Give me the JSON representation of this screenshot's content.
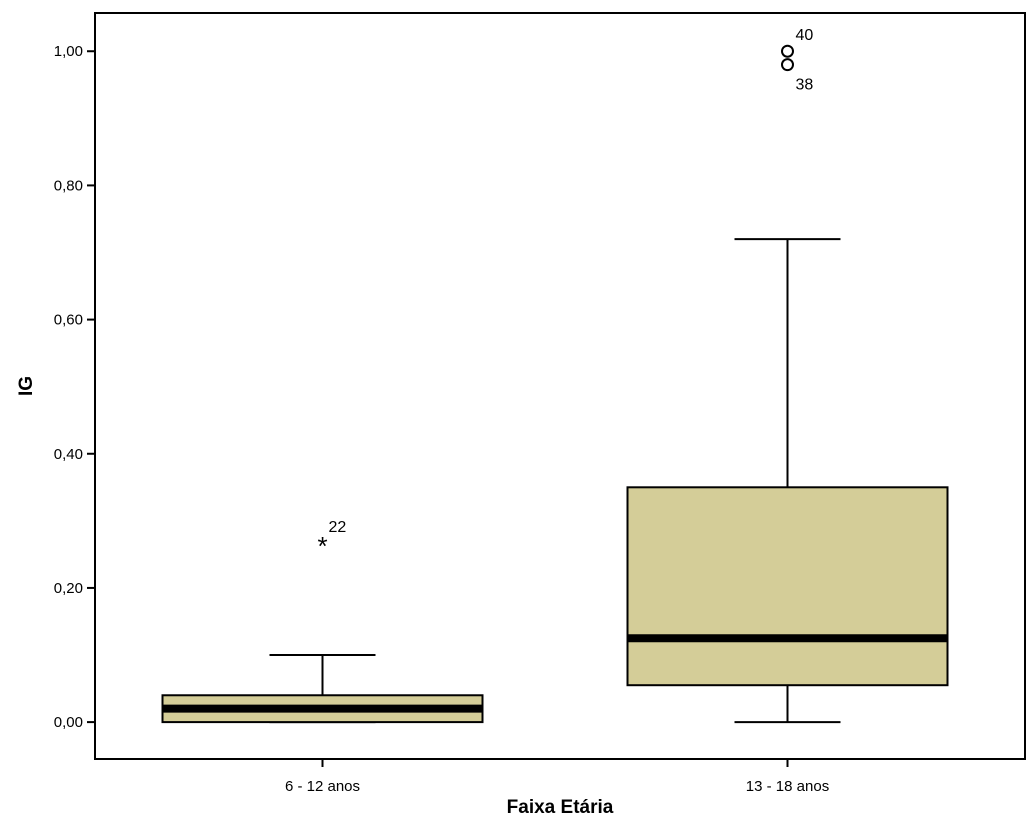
{
  "chart_data": {
    "type": "boxplot",
    "xlabel": "Faixa Etária",
    "ylabel": "IG",
    "ylim": [
      -0.055,
      1.057
    ],
    "yticks": [
      {
        "value": 0.0,
        "label": "0,00"
      },
      {
        "value": 0.2,
        "label": "0,20"
      },
      {
        "value": 0.4,
        "label": "0,40"
      },
      {
        "value": 0.6,
        "label": "0,60"
      },
      {
        "value": 0.8,
        "label": "0,80"
      },
      {
        "value": 1.0,
        "label": "1,00"
      }
    ],
    "categories": [
      "6 - 12 anos",
      "13 - 18 anos"
    ],
    "box_color": "#d4cd98",
    "groups": [
      {
        "category": "6 - 12 anos",
        "whisker_low": 0.0,
        "q1": 0.0,
        "median": 0.02,
        "q3": 0.04,
        "whisker_high": 0.1,
        "outliers": [
          {
            "value": 0.27,
            "label": "22",
            "marker": "star"
          }
        ]
      },
      {
        "category": "13 - 18 anos",
        "whisker_low": 0.0,
        "q1": 0.055,
        "median": 0.125,
        "q3": 0.35,
        "whisker_high": 0.72,
        "outliers": [
          {
            "value": 1.0,
            "label": "40",
            "marker": "circle"
          },
          {
            "value": 0.98,
            "label": "38",
            "marker": "circle"
          }
        ]
      }
    ]
  }
}
